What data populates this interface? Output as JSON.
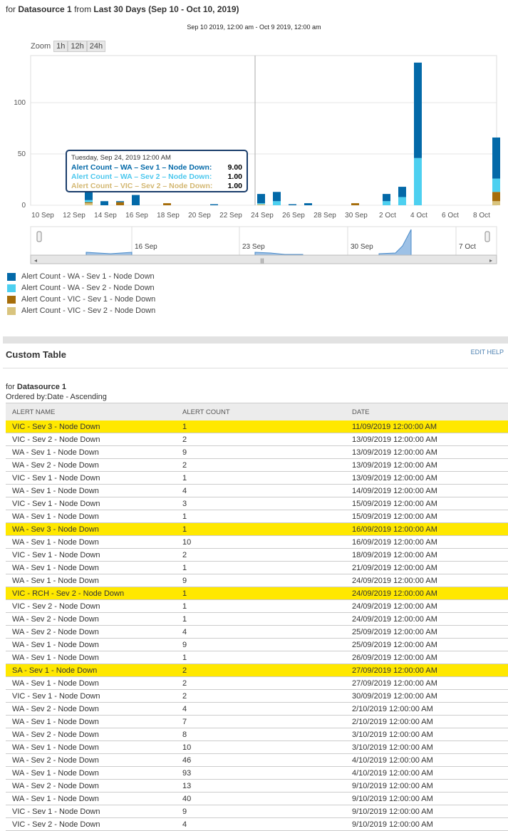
{
  "header": {
    "prefix": "for",
    "datasource": "Datasource 1",
    "from": "from",
    "period": "Last 30 Days (Sep 10 - Oct 10, 2019)"
  },
  "chart_data": {
    "type": "bar",
    "stacked": true,
    "title": "Sep 10 2019, 12:00 am - Oct 9 2019, 12:00 am",
    "zoom_label": "Zoom",
    "zoom_buttons": [
      "1h",
      "12h",
      "24h"
    ],
    "y_ticks": [
      0,
      50,
      100
    ],
    "ylim": [
      0,
      150
    ],
    "x_ticks": [
      "10 Sep",
      "12 Sep",
      "14 Sep",
      "16 Sep",
      "18 Sep",
      "20 Sep",
      "22 Sep",
      "24 Sep",
      "26 Sep",
      "28 Sep",
      "30 Sep",
      "2 Oct",
      "4 Oct",
      "6 Oct",
      "8 Oct"
    ],
    "series": [
      {
        "name": "Alert Count - WA - Sev 1 - Node Down",
        "color": "#0369a8"
      },
      {
        "name": "Alert Count - WA - Sev 2 - Node Down",
        "color": "#4dd0f0"
      },
      {
        "name": "Alert Count - VIC - Sev 1 - Node Down",
        "color": "#a66d0a"
      },
      {
        "name": "Alert Count - VIC - Sev 2 - Node Down",
        "color": "#d9c47e"
      }
    ],
    "days": [
      {
        "day": 3,
        "values": [
          9,
          2,
          1,
          2
        ]
      },
      {
        "day": 4,
        "values": [
          4,
          0,
          0,
          0
        ]
      },
      {
        "day": 5,
        "values": [
          1,
          0,
          3,
          0
        ]
      },
      {
        "day": 6,
        "values": [
          10,
          0,
          0,
          0
        ]
      },
      {
        "day": 8,
        "values": [
          0,
          0,
          2,
          0
        ]
      },
      {
        "day": 11,
        "values": [
          1,
          0,
          0,
          0
        ]
      },
      {
        "day": 14,
        "values": [
          9,
          1,
          0,
          1
        ]
      },
      {
        "day": 15,
        "values": [
          9,
          4,
          0,
          0
        ]
      },
      {
        "day": 16,
        "values": [
          1,
          0,
          0,
          0
        ]
      },
      {
        "day": 17,
        "values": [
          2,
          0,
          0,
          0
        ]
      },
      {
        "day": 20,
        "values": [
          0,
          0,
          2,
          0
        ]
      },
      {
        "day": 22,
        "values": [
          7,
          4,
          0,
          0
        ]
      },
      {
        "day": 23,
        "values": [
          10,
          8,
          0,
          0
        ]
      },
      {
        "day": 24,
        "values": [
          93,
          46,
          0,
          0
        ]
      },
      {
        "day": 29,
        "values": [
          40,
          13,
          9,
          4
        ]
      }
    ],
    "navigator_labels": [
      "16 Sep",
      "23 Sep",
      "30 Sep",
      "7 Oct"
    ],
    "tooltip": {
      "title": "Tuesday, Sep 24, 2019 12:00 AM",
      "rows": [
        {
          "label": "Alert Count – WA – Sev 1 – Node Down:",
          "value": "9.00",
          "color": "#0369a8"
        },
        {
          "label": "Alert Count – WA – Sev 2 – Node Down:",
          "value": "1.00",
          "color": "#4dc8ee"
        },
        {
          "label": "Alert Count – VIC – Sev 2 – Node Down:",
          "value": "1.00",
          "color": "#d4b873"
        }
      ]
    }
  },
  "table_section": {
    "title": "Custom Table",
    "edit": "EDIT",
    "help": "HELP",
    "for": "for",
    "datasource": "Datasource 1",
    "ordered": "Ordered by:Date - Ascending",
    "columns": [
      "ALERT NAME",
      "ALERT COUNT",
      "DATE"
    ],
    "rows": [
      [
        "VIC - Sev 3 - Node Down",
        "1",
        "11/09/2019 12:00:00 AM",
        1
      ],
      [
        "VIC - Sev 2 - Node Down",
        "2",
        "13/09/2019 12:00:00 AM",
        0
      ],
      [
        "WA - Sev 1 - Node Down",
        "9",
        "13/09/2019 12:00:00 AM",
        0
      ],
      [
        "WA - Sev 2 - Node Down",
        "2",
        "13/09/2019 12:00:00 AM",
        0
      ],
      [
        "VIC - Sev 1 - Node Down",
        "1",
        "13/09/2019 12:00:00 AM",
        0
      ],
      [
        "WA - Sev 1 - Node Down",
        "4",
        "14/09/2019 12:00:00 AM",
        0
      ],
      [
        "VIC - Sev 1 - Node Down",
        "3",
        "15/09/2019 12:00:00 AM",
        0
      ],
      [
        "WA - Sev 1 - Node Down",
        "1",
        "15/09/2019 12:00:00 AM",
        0
      ],
      [
        "WA - Sev 3 - Node Down",
        "1",
        "16/09/2019 12:00:00 AM",
        1
      ],
      [
        "WA - Sev 1 - Node Down",
        "10",
        "16/09/2019 12:00:00 AM",
        0
      ],
      [
        "VIC - Sev 1 - Node Down",
        "2",
        "18/09/2019 12:00:00 AM",
        0
      ],
      [
        "WA - Sev 1 - Node Down",
        "1",
        "21/09/2019 12:00:00 AM",
        0
      ],
      [
        "WA - Sev 1 - Node Down",
        "9",
        "24/09/2019 12:00:00 AM",
        0
      ],
      [
        "VIC - RCH - Sev 2 - Node Down",
        "1",
        "24/09/2019 12:00:00 AM",
        1
      ],
      [
        "VIC - Sev 2 - Node Down",
        "1",
        "24/09/2019 12:00:00 AM",
        0
      ],
      [
        "WA - Sev 2 - Node Down",
        "1",
        "24/09/2019 12:00:00 AM",
        0
      ],
      [
        "WA - Sev 2 - Node Down",
        "4",
        "25/09/2019 12:00:00 AM",
        0
      ],
      [
        "WA - Sev 1 - Node Down",
        "9",
        "25/09/2019 12:00:00 AM",
        0
      ],
      [
        "WA - Sev 1 - Node Down",
        "1",
        "26/09/2019 12:00:00 AM",
        0
      ],
      [
        "SA - Sev 1 - Node Down",
        "2",
        "27/09/2019 12:00:00 AM",
        1
      ],
      [
        "WA - Sev 1 - Node Down",
        "2",
        "27/09/2019 12:00:00 AM",
        0
      ],
      [
        "VIC - Sev 1 - Node Down",
        "2",
        "30/09/2019 12:00:00 AM",
        0
      ],
      [
        "WA - Sev 2 - Node Down",
        "4",
        "2/10/2019 12:00:00 AM",
        0
      ],
      [
        "WA - Sev 1 - Node Down",
        "7",
        "2/10/2019 12:00:00 AM",
        0
      ],
      [
        "WA - Sev 2 - Node Down",
        "8",
        "3/10/2019 12:00:00 AM",
        0
      ],
      [
        "WA - Sev 1 - Node Down",
        "10",
        "3/10/2019 12:00:00 AM",
        0
      ],
      [
        "WA - Sev 2 - Node Down",
        "46",
        "4/10/2019 12:00:00 AM",
        0
      ],
      [
        "WA - Sev 1 - Node Down",
        "93",
        "4/10/2019 12:00:00 AM",
        0
      ],
      [
        "WA - Sev 2 - Node Down",
        "13",
        "9/10/2019 12:00:00 AM",
        0
      ],
      [
        "WA - Sev 1 - Node Down",
        "40",
        "9/10/2019 12:00:00 AM",
        0
      ],
      [
        "VIC - Sev 1 - Node Down",
        "9",
        "9/10/2019 12:00:00 AM",
        0
      ],
      [
        "VIC - Sev 2 - Node Down",
        "4",
        "9/10/2019 12:00:00 AM",
        0
      ]
    ]
  }
}
